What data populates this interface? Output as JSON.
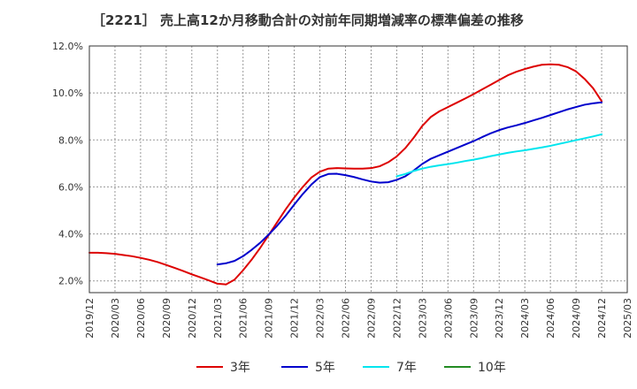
{
  "chart_data": {
    "type": "line",
    "title": "［2221］ 売上高12か月移動合計の対前年同期増減率の標準偏差の推移",
    "xlabel": "",
    "ylabel": "",
    "ylim": [
      1.5,
      12.0
    ],
    "y_ticks": [
      2.0,
      4.0,
      6.0,
      8.0,
      10.0,
      12.0
    ],
    "y_tick_labels": [
      "2.0%",
      "4.0%",
      "6.0%",
      "8.0%",
      "10.0%",
      "12.0%"
    ],
    "x_ticks": [
      "2019/12",
      "2020/03",
      "2020/06",
      "2020/09",
      "2020/12",
      "2021/03",
      "2021/06",
      "2021/09",
      "2021/12",
      "2022/03",
      "2022/06",
      "2022/09",
      "2022/12",
      "2023/03",
      "2023/06",
      "2023/09",
      "2023/12",
      "2024/03",
      "2024/06",
      "2024/09",
      "2024/12",
      "2025/03"
    ],
    "grid": true,
    "legend_position": "bottom",
    "series": [
      {
        "name": "3年",
        "color": "#dd0000",
        "points": [
          [
            "2019/12",
            3.2
          ],
          [
            "2020/01",
            3.2
          ],
          [
            "2020/02",
            3.18
          ],
          [
            "2020/03",
            3.15
          ],
          [
            "2020/04",
            3.1
          ],
          [
            "2020/05",
            3.05
          ],
          [
            "2020/06",
            2.98
          ],
          [
            "2020/07",
            2.9
          ],
          [
            "2020/08",
            2.8
          ],
          [
            "2020/09",
            2.68
          ],
          [
            "2020/10",
            2.55
          ],
          [
            "2020/11",
            2.42
          ],
          [
            "2020/12",
            2.28
          ],
          [
            "2021/01",
            2.15
          ],
          [
            "2021/02",
            2.02
          ],
          [
            "2021/03",
            1.88
          ],
          [
            "2021/04",
            1.85
          ],
          [
            "2021/05",
            2.05
          ],
          [
            "2021/06",
            2.45
          ],
          [
            "2021/07",
            2.9
          ],
          [
            "2021/08",
            3.4
          ],
          [
            "2021/09",
            3.95
          ],
          [
            "2021/10",
            4.5
          ],
          [
            "2021/11",
            5.05
          ],
          [
            "2021/12",
            5.55
          ],
          [
            "2022/01",
            6.0
          ],
          [
            "2022/02",
            6.4
          ],
          [
            "2022/03",
            6.65
          ],
          [
            "2022/04",
            6.78
          ],
          [
            "2022/05",
            6.8
          ],
          [
            "2022/06",
            6.79
          ],
          [
            "2022/07",
            6.78
          ],
          [
            "2022/08",
            6.78
          ],
          [
            "2022/09",
            6.8
          ],
          [
            "2022/10",
            6.88
          ],
          [
            "2022/11",
            7.05
          ],
          [
            "2022/12",
            7.3
          ],
          [
            "2023/01",
            7.65
          ],
          [
            "2023/02",
            8.1
          ],
          [
            "2023/03",
            8.6
          ],
          [
            "2023/04",
            8.98
          ],
          [
            "2023/05",
            9.22
          ],
          [
            "2023/06",
            9.4
          ],
          [
            "2023/07",
            9.58
          ],
          [
            "2023/08",
            9.76
          ],
          [
            "2023/09",
            9.95
          ],
          [
            "2023/10",
            10.15
          ],
          [
            "2023/11",
            10.35
          ],
          [
            "2023/12",
            10.55
          ],
          [
            "2024/01",
            10.75
          ],
          [
            "2024/02",
            10.9
          ],
          [
            "2024/03",
            11.02
          ],
          [
            "2024/04",
            11.12
          ],
          [
            "2024/05",
            11.2
          ],
          [
            "2024/06",
            11.22
          ],
          [
            "2024/07",
            11.2
          ],
          [
            "2024/08",
            11.1
          ],
          [
            "2024/09",
            10.92
          ],
          [
            "2024/10",
            10.6
          ],
          [
            "2024/11",
            10.2
          ],
          [
            "2024/12",
            9.65
          ]
        ]
      },
      {
        "name": "5年",
        "color": "#0000cc",
        "points": [
          [
            "2021/03",
            2.7
          ],
          [
            "2021/04",
            2.75
          ],
          [
            "2021/05",
            2.85
          ],
          [
            "2021/06",
            3.05
          ],
          [
            "2021/07",
            3.32
          ],
          [
            "2021/08",
            3.62
          ],
          [
            "2021/09",
            3.97
          ],
          [
            "2021/10",
            4.35
          ],
          [
            "2021/11",
            4.78
          ],
          [
            "2021/12",
            5.25
          ],
          [
            "2022/01",
            5.7
          ],
          [
            "2022/02",
            6.1
          ],
          [
            "2022/03",
            6.42
          ],
          [
            "2022/04",
            6.55
          ],
          [
            "2022/05",
            6.56
          ],
          [
            "2022/06",
            6.5
          ],
          [
            "2022/07",
            6.42
          ],
          [
            "2022/08",
            6.32
          ],
          [
            "2022/09",
            6.23
          ],
          [
            "2022/10",
            6.18
          ],
          [
            "2022/11",
            6.2
          ],
          [
            "2022/12",
            6.3
          ],
          [
            "2023/01",
            6.45
          ],
          [
            "2023/02",
            6.7
          ],
          [
            "2023/03",
            6.98
          ],
          [
            "2023/04",
            7.2
          ],
          [
            "2023/05",
            7.35
          ],
          [
            "2023/06",
            7.5
          ],
          [
            "2023/07",
            7.65
          ],
          [
            "2023/08",
            7.8
          ],
          [
            "2023/09",
            7.95
          ],
          [
            "2023/10",
            8.12
          ],
          [
            "2023/11",
            8.28
          ],
          [
            "2023/12",
            8.42
          ],
          [
            "2024/01",
            8.53
          ],
          [
            "2024/02",
            8.62
          ],
          [
            "2024/03",
            8.72
          ],
          [
            "2024/04",
            8.83
          ],
          [
            "2024/05",
            8.94
          ],
          [
            "2024/06",
            9.06
          ],
          [
            "2024/07",
            9.18
          ],
          [
            "2024/08",
            9.3
          ],
          [
            "2024/09",
            9.4
          ],
          [
            "2024/10",
            9.5
          ],
          [
            "2024/11",
            9.56
          ],
          [
            "2024/12",
            9.6
          ]
        ]
      },
      {
        "name": "7年",
        "color": "#00e5ee",
        "points": [
          [
            "2022/12",
            6.45
          ],
          [
            "2023/01",
            6.55
          ],
          [
            "2023/02",
            6.68
          ],
          [
            "2023/03",
            6.78
          ],
          [
            "2023/04",
            6.86
          ],
          [
            "2023/05",
            6.92
          ],
          [
            "2023/06",
            6.97
          ],
          [
            "2023/07",
            7.03
          ],
          [
            "2023/08",
            7.1
          ],
          [
            "2023/09",
            7.16
          ],
          [
            "2023/10",
            7.23
          ],
          [
            "2023/11",
            7.31
          ],
          [
            "2023/12",
            7.38
          ],
          [
            "2024/01",
            7.45
          ],
          [
            "2024/02",
            7.51
          ],
          [
            "2024/03",
            7.56
          ],
          [
            "2024/04",
            7.62
          ],
          [
            "2024/05",
            7.68
          ],
          [
            "2024/06",
            7.75
          ],
          [
            "2024/07",
            7.83
          ],
          [
            "2024/08",
            7.91
          ],
          [
            "2024/09",
            7.99
          ],
          [
            "2024/10",
            8.07
          ],
          [
            "2024/11",
            8.15
          ],
          [
            "2024/12",
            8.24
          ]
        ]
      },
      {
        "name": "10年",
        "color": "#228b22",
        "points": []
      }
    ]
  }
}
